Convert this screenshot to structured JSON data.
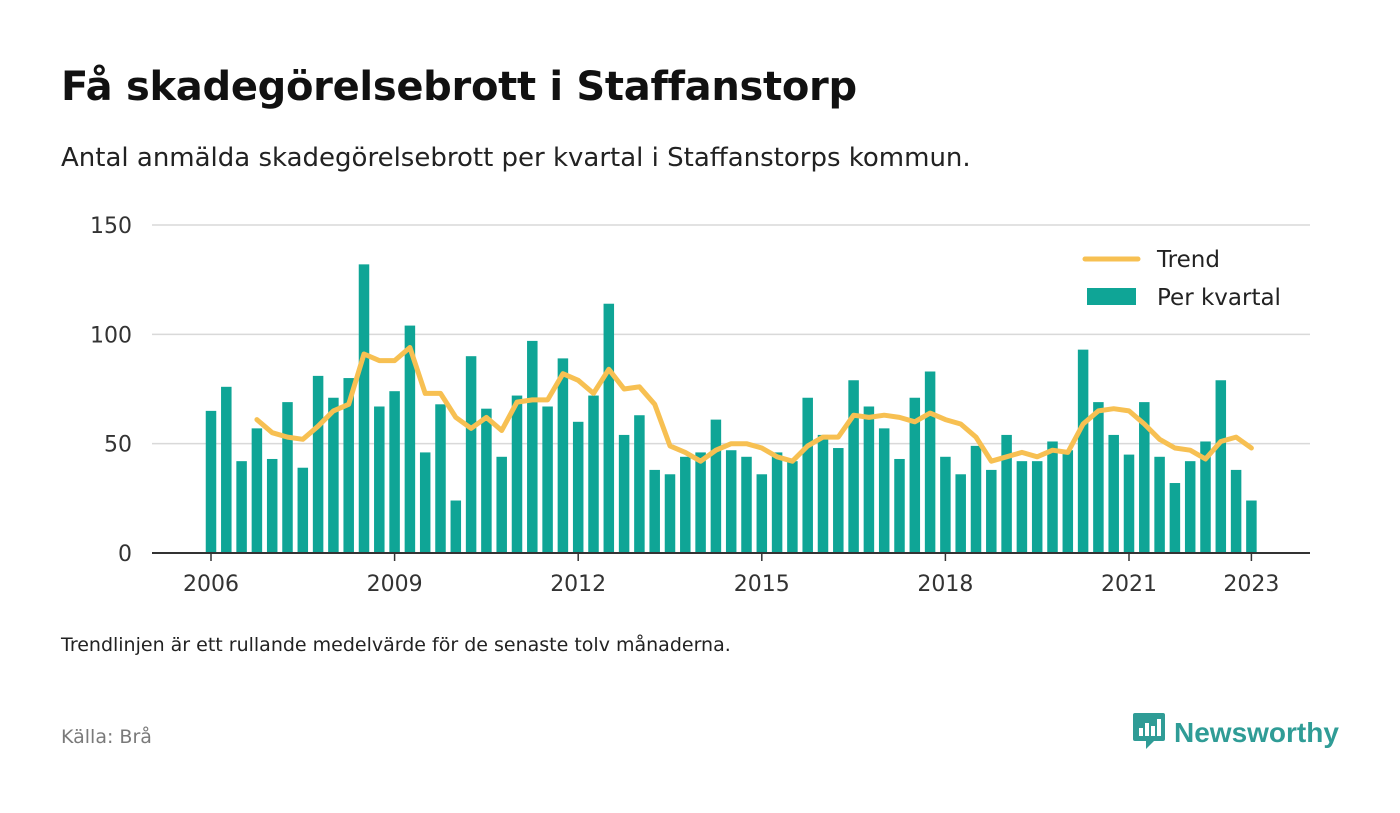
{
  "title": "Få skadegörelsebrott i Staffanstorp",
  "subtitle": "Antal anmälda skadegörelsebrott per kvartal i Staffanstorps kommun.",
  "footnote": "Trendlinjen är ett rullande medelvärde för de senaste tolv månaderna.",
  "source": "Källa: Brå",
  "brand": {
    "name": "Newsworthy",
    "icon": "newsworthy-logo-icon",
    "color": "#2f9c96"
  },
  "chart_data": {
    "type": "bar",
    "title": "",
    "xlabel": "",
    "ylabel": "",
    "ylim": [
      0,
      150
    ],
    "yticks": [
      "0",
      "50",
      "100",
      "150"
    ],
    "xticks": [
      "2006",
      "2009",
      "2012",
      "2015",
      "2018",
      "2021",
      "2023"
    ],
    "grid": true,
    "legend_position": "top-right",
    "colors": {
      "bars": "#0fa596",
      "trend": "#f7c052",
      "grid": "#d9d9d9",
      "axis": "#333333"
    },
    "x": [
      "2006 Q1",
      "2006 Q2",
      "2006 Q3",
      "2006 Q4",
      "2007 Q1",
      "2007 Q2",
      "2007 Q3",
      "2007 Q4",
      "2008 Q1",
      "2008 Q2",
      "2008 Q3",
      "2008 Q4",
      "2009 Q1",
      "2009 Q2",
      "2009 Q3",
      "2009 Q4",
      "2010 Q1",
      "2010 Q2",
      "2010 Q3",
      "2010 Q4",
      "2011 Q1",
      "2011 Q2",
      "2011 Q3",
      "2011 Q4",
      "2012 Q1",
      "2012 Q2",
      "2012 Q3",
      "2012 Q4",
      "2013 Q1",
      "2013 Q2",
      "2013 Q3",
      "2013 Q4",
      "2014 Q1",
      "2014 Q2",
      "2014 Q3",
      "2014 Q4",
      "2015 Q1",
      "2015 Q2",
      "2015 Q3",
      "2015 Q4",
      "2016 Q1",
      "2016 Q2",
      "2016 Q3",
      "2016 Q4",
      "2017 Q1",
      "2017 Q2",
      "2017 Q3",
      "2017 Q4",
      "2018 Q1",
      "2018 Q2",
      "2018 Q3",
      "2018 Q4",
      "2019 Q1",
      "2019 Q2",
      "2019 Q3",
      "2019 Q4",
      "2020 Q1",
      "2020 Q2",
      "2020 Q3",
      "2020 Q4",
      "2021 Q1",
      "2021 Q2",
      "2021 Q3",
      "2021 Q4",
      "2022 Q1",
      "2022 Q2",
      "2022 Q3",
      "2022 Q4",
      "2023 Q1"
    ],
    "series": [
      {
        "name": "Per kvartal",
        "type": "bar",
        "values": [
          65,
          76,
          42,
          57,
          43,
          69,
          39,
          81,
          71,
          80,
          132,
          67,
          74,
          104,
          46,
          68,
          24,
          90,
          66,
          44,
          72,
          97,
          67,
          89,
          60,
          72,
          114,
          54,
          63,
          38,
          36,
          44,
          46,
          61,
          47,
          44,
          36,
          46,
          42,
          71,
          54,
          48,
          79,
          67,
          57,
          43,
          71,
          83,
          44,
          36,
          49,
          38,
          54,
          42,
          42,
          51,
          47,
          93,
          69,
          54,
          45,
          69,
          44,
          32,
          42,
          51,
          79,
          38,
          24
        ]
      },
      {
        "name": "Trend",
        "type": "line",
        "values": [
          null,
          null,
          null,
          61,
          55,
          53,
          52,
          58,
          65,
          68,
          91,
          88,
          88,
          94,
          73,
          73,
          62,
          57,
          62,
          56,
          69,
          70,
          70,
          82,
          79,
          73,
          84,
          75,
          76,
          68,
          49,
          46,
          42,
          47,
          50,
          50,
          48,
          44,
          42,
          49,
          53,
          53,
          63,
          62,
          63,
          62,
          60,
          64,
          61,
          59,
          53,
          42,
          44,
          46,
          44,
          47,
          46,
          59,
          65,
          66,
          65,
          59,
          52,
          48,
          47,
          43,
          51,
          53,
          48
        ]
      }
    ]
  }
}
